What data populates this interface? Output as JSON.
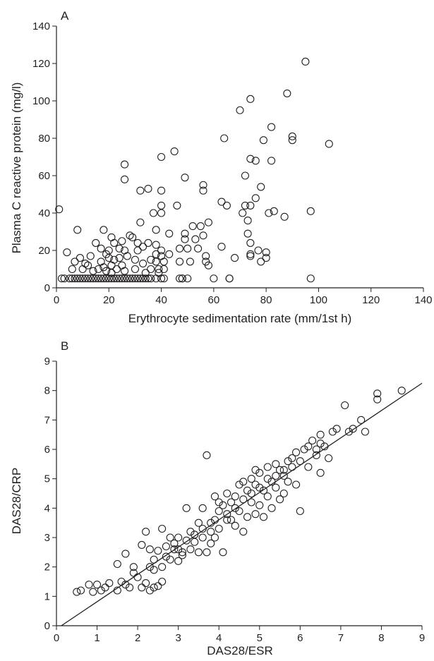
{
  "chart_data": [
    {
      "panel": "A",
      "type": "scatter",
      "xlabel": "Erythrocyte sedimentation rate (mm/1st h)",
      "ylabel": "Plasma C reactive protein (mg/l)",
      "xlim": [
        0,
        140
      ],
      "ylim": [
        0,
        140
      ],
      "xticks": [
        "0",
        "20",
        "40",
        "60",
        "80",
        "100",
        "120",
        "140"
      ],
      "yticks": [
        "0",
        "20",
        "40",
        "60",
        "80",
        "100",
        "120",
        "140"
      ],
      "marker": "open-circle",
      "points": [
        [
          2,
          5
        ],
        [
          3,
          5
        ],
        [
          5,
          5
        ],
        [
          6,
          5
        ],
        [
          7,
          5
        ],
        [
          8,
          5
        ],
        [
          9,
          5
        ],
        [
          10,
          5
        ],
        [
          11,
          5
        ],
        [
          12,
          5
        ],
        [
          13,
          5
        ],
        [
          14,
          5
        ],
        [
          15,
          5
        ],
        [
          16,
          5
        ],
        [
          17,
          5
        ],
        [
          18,
          5
        ],
        [
          19,
          5
        ],
        [
          20,
          5
        ],
        [
          21,
          5
        ],
        [
          22,
          5
        ],
        [
          23,
          5
        ],
        [
          24,
          5
        ],
        [
          25,
          5
        ],
        [
          26,
          5
        ],
        [
          27,
          5
        ],
        [
          28,
          5
        ],
        [
          29,
          5
        ],
        [
          30,
          5
        ],
        [
          31,
          5
        ],
        [
          32,
          5
        ],
        [
          33,
          5
        ],
        [
          34,
          5
        ],
        [
          35,
          5
        ],
        [
          36,
          5
        ],
        [
          38,
          5
        ],
        [
          40,
          5
        ],
        [
          41,
          5
        ],
        [
          47,
          5
        ],
        [
          48,
          5
        ],
        [
          50,
          5
        ],
        [
          60,
          5
        ],
        [
          66,
          5
        ],
        [
          97,
          5
        ],
        [
          1,
          42
        ],
        [
          4,
          19
        ],
        [
          6,
          10
        ],
        [
          7,
          14
        ],
        [
          8,
          31
        ],
        [
          9,
          16
        ],
        [
          10,
          10
        ],
        [
          11,
          13
        ],
        [
          12,
          12
        ],
        [
          13,
          17
        ],
        [
          14,
          9
        ],
        [
          15,
          24
        ],
        [
          16,
          10
        ],
        [
          17,
          21
        ],
        [
          17,
          14
        ],
        [
          18,
          31
        ],
        [
          18,
          11
        ],
        [
          19,
          18
        ],
        [
          19,
          9
        ],
        [
          20,
          16
        ],
        [
          20,
          20
        ],
        [
          21,
          27
        ],
        [
          21,
          12
        ],
        [
          21,
          8
        ],
        [
          22,
          24
        ],
        [
          22,
          15
        ],
        [
          23,
          10
        ],
        [
          24,
          21
        ],
        [
          24,
          16
        ],
        [
          25,
          25
        ],
        [
          25,
          12
        ],
        [
          26,
          66
        ],
        [
          26,
          58
        ],
        [
          26,
          20
        ],
        [
          26,
          9
        ],
        [
          27,
          17
        ],
        [
          28,
          28
        ],
        [
          29,
          27
        ],
        [
          30,
          15
        ],
        [
          30,
          10
        ],
        [
          31,
          24
        ],
        [
          31,
          20
        ],
        [
          32,
          52
        ],
        [
          32,
          35
        ],
        [
          33,
          22
        ],
        [
          33,
          13
        ],
        [
          34,
          8
        ],
        [
          35,
          53
        ],
        [
          35,
          24
        ],
        [
          36,
          15
        ],
        [
          36,
          10
        ],
        [
          37,
          40
        ],
        [
          38,
          31
        ],
        [
          38,
          23
        ],
        [
          38,
          18
        ],
        [
          38,
          14
        ],
        [
          39,
          10
        ],
        [
          39,
          8
        ],
        [
          40,
          70
        ],
        [
          40,
          52
        ],
        [
          40,
          44
        ],
        [
          40,
          40
        ],
        [
          40,
          20
        ],
        [
          40,
          17
        ],
        [
          41,
          14
        ],
        [
          41,
          10
        ],
        [
          43,
          29
        ],
        [
          43,
          18
        ],
        [
          45,
          73
        ],
        [
          46,
          44
        ],
        [
          47,
          21
        ],
        [
          47,
          14
        ],
        [
          48,
          5
        ],
        [
          49,
          59
        ],
        [
          49,
          29
        ],
        [
          49,
          26
        ],
        [
          50,
          21
        ],
        [
          51,
          14
        ],
        [
          52,
          33
        ],
        [
          53,
          26
        ],
        [
          54,
          21
        ],
        [
          55,
          33
        ],
        [
          56,
          55
        ],
        [
          56,
          52
        ],
        [
          56,
          28
        ],
        [
          57,
          17
        ],
        [
          57,
          14
        ],
        [
          58,
          35
        ],
        [
          58,
          12
        ],
        [
          63,
          46
        ],
        [
          63,
          22
        ],
        [
          64,
          80
        ],
        [
          65,
          44
        ],
        [
          66,
          5
        ],
        [
          68,
          16
        ],
        [
          70,
          95
        ],
        [
          71,
          40
        ],
        [
          72,
          60
        ],
        [
          72,
          44
        ],
        [
          73,
          36
        ],
        [
          73,
          29
        ],
        [
          74,
          101
        ],
        [
          74,
          69
        ],
        [
          74,
          44
        ],
        [
          74,
          24
        ],
        [
          74,
          18
        ],
        [
          74,
          17
        ],
        [
          76,
          68
        ],
        [
          76,
          48
        ],
        [
          77,
          20
        ],
        [
          78,
          14
        ],
        [
          78,
          54
        ],
        [
          79,
          79
        ],
        [
          80,
          16
        ],
        [
          80,
          19
        ],
        [
          81,
          40
        ],
        [
          82,
          86
        ],
        [
          82,
          68
        ],
        [
          83,
          41
        ],
        [
          87,
          38
        ],
        [
          88,
          104
        ],
        [
          90,
          81
        ],
        [
          90,
          79
        ],
        [
          95,
          121
        ],
        [
          97,
          41
        ],
        [
          104,
          77
        ]
      ]
    },
    {
      "panel": "B",
      "type": "scatter",
      "xlabel": "DAS28/ESR",
      "ylabel": "DAS28/CRP",
      "xlim": [
        0,
        9
      ],
      "ylim": [
        0,
        9
      ],
      "xticks": [
        "0",
        "1",
        "2",
        "3",
        "4",
        "5",
        "6",
        "7",
        "8",
        "9"
      ],
      "yticks": [
        "0",
        "1",
        "2",
        "3",
        "4",
        "5",
        "6",
        "7",
        "8",
        "9"
      ],
      "marker": "open-circle",
      "fit_line": {
        "x": [
          0.12,
          9
        ],
        "y": [
          0,
          8.25
        ]
      },
      "points": [
        [
          0.5,
          1.15
        ],
        [
          0.6,
          1.2
        ],
        [
          0.8,
          1.4
        ],
        [
          0.9,
          1.15
        ],
        [
          1.0,
          1.4
        ],
        [
          1.1,
          1.2
        ],
        [
          1.2,
          1.3
        ],
        [
          1.3,
          1.45
        ],
        [
          1.5,
          1.2
        ],
        [
          1.6,
          1.5
        ],
        [
          1.7,
          1.4
        ],
        [
          1.8,
          1.3
        ],
        [
          1.9,
          1.8
        ],
        [
          2.0,
          1.65
        ],
        [
          2.1,
          1.3
        ],
        [
          2.2,
          1.45
        ],
        [
          2.3,
          1.2
        ],
        [
          2.4,
          1.3
        ],
        [
          2.5,
          1.35
        ],
        [
          2.6,
          1.5
        ],
        [
          1.5,
          2.1
        ],
        [
          1.7,
          2.45
        ],
        [
          1.9,
          2.0
        ],
        [
          2.1,
          2.75
        ],
        [
          2.2,
          3.2
        ],
        [
          2.3,
          2.0
        ],
        [
          2.4,
          2.25
        ],
        [
          2.5,
          2.55
        ],
        [
          2.6,
          2.0
        ],
        [
          2.7,
          2.35
        ],
        [
          2.8,
          2.25
        ],
        [
          2.9,
          2.6
        ],
        [
          3.0,
          3.0
        ],
        [
          3.0,
          2.2
        ],
        [
          3.1,
          2.5
        ],
        [
          3.2,
          4.0
        ],
        [
          3.2,
          2.9
        ],
        [
          3.3,
          3.2
        ],
        [
          3.4,
          2.85
        ],
        [
          3.5,
          3.5
        ],
        [
          3.5,
          2.5
        ],
        [
          3.6,
          4.0
        ],
        [
          3.6,
          3.0
        ],
        [
          3.7,
          2.5
        ],
        [
          3.7,
          5.8
        ],
        [
          3.8,
          3.2
        ],
        [
          3.8,
          2.8
        ],
        [
          3.9,
          4.4
        ],
        [
          3.9,
          3.6
        ],
        [
          4.0,
          3.9
        ],
        [
          4.0,
          3.3
        ],
        [
          4.1,
          4.1
        ],
        [
          4.1,
          2.5
        ],
        [
          4.2,
          3.8
        ],
        [
          4.2,
          4.5
        ],
        [
          4.3,
          3.6
        ],
        [
          4.3,
          4.2
        ],
        [
          4.4,
          3.4
        ],
        [
          4.4,
          4.0
        ],
        [
          4.5,
          4.8
        ],
        [
          4.5,
          3.9
        ],
        [
          4.6,
          4.3
        ],
        [
          4.6,
          3.2
        ],
        [
          4.7,
          4.6
        ],
        [
          4.7,
          3.7
        ],
        [
          4.8,
          5.0
        ],
        [
          4.8,
          4.2
        ],
        [
          4.9,
          3.8
        ],
        [
          4.9,
          4.8
        ],
        [
          5.0,
          4.1
        ],
        [
          5.0,
          5.2
        ],
        [
          5.1,
          4.6
        ],
        [
          5.1,
          3.7
        ],
        [
          5.2,
          5.4
        ],
        [
          5.2,
          4.4
        ],
        [
          5.3,
          4.9
        ],
        [
          5.3,
          4.0
        ],
        [
          5.4,
          5.5
        ],
        [
          5.4,
          4.7
        ],
        [
          5.5,
          4.3
        ],
        [
          5.5,
          5.3
        ],
        [
          5.6,
          5.1
        ],
        [
          5.6,
          4.5
        ],
        [
          5.7,
          5.6
        ],
        [
          5.7,
          4.9
        ],
        [
          5.8,
          5.4
        ],
        [
          5.9,
          5.9
        ],
        [
          5.9,
          4.8
        ],
        [
          6.0,
          5.6
        ],
        [
          6.0,
          3.9
        ],
        [
          6.1,
          6.0
        ],
        [
          6.2,
          5.4
        ],
        [
          6.3,
          6.3
        ],
        [
          6.4,
          5.8
        ],
        [
          6.5,
          6.5
        ],
        [
          6.5,
          5.2
        ],
        [
          6.6,
          6.1
        ],
        [
          6.7,
          5.7
        ],
        [
          6.8,
          6.6
        ],
        [
          6.9,
          6.7
        ],
        [
          7.2,
          6.6
        ],
        [
          7.3,
          6.7
        ],
        [
          7.5,
          7.0
        ],
        [
          7.6,
          6.6
        ],
        [
          7.9,
          7.9
        ],
        [
          7.9,
          7.7
        ],
        [
          8.5,
          8.0
        ],
        [
          2.6,
          3.3
        ],
        [
          2.7,
          2.7
        ],
        [
          2.8,
          3.0
        ],
        [
          2.9,
          2.8
        ],
        [
          3.1,
          2.4
        ],
        [
          3.3,
          2.6
        ],
        [
          3.4,
          3.1
        ],
        [
          3.6,
          3.3
        ],
        [
          3.8,
          3.5
        ],
        [
          4.0,
          4.2
        ],
        [
          4.2,
          3.6
        ],
        [
          4.4,
          4.4
        ],
        [
          4.6,
          4.9
        ],
        [
          4.8,
          4.5
        ],
        [
          5.0,
          4.7
        ],
        [
          5.2,
          5.0
        ],
        [
          5.4,
          5.1
        ],
        [
          5.6,
          5.3
        ],
        [
          5.8,
          5.7
        ],
        [
          6.2,
          6.1
        ],
        [
          6.5,
          6.2
        ],
        [
          7.1,
          7.5
        ],
        [
          6.4,
          6.0
        ],
        [
          4.9,
          5.3
        ],
        [
          3.9,
          3.0
        ],
        [
          3.0,
          2.6
        ],
        [
          2.3,
          2.6
        ],
        [
          2.4,
          1.9
        ]
      ]
    }
  ]
}
